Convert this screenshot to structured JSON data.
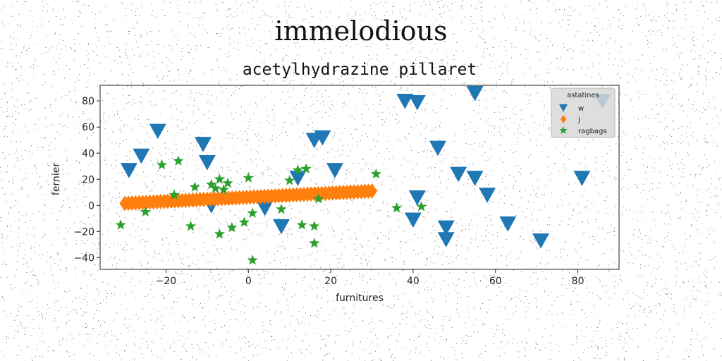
{
  "chart_data": {
    "type": "scatter",
    "suptitle": "immelodious",
    "title": "acetylhydrazine pillaret",
    "xlabel": "furnitures",
    "ylabel": "fernier",
    "xlim": [
      -36,
      90
    ],
    "ylim": [
      -49,
      92
    ],
    "xticks": [
      -20,
      0,
      20,
      40,
      60,
      80
    ],
    "yticks": [
      -40,
      -20,
      0,
      20,
      40,
      60,
      80
    ],
    "xtick_labels": [
      "−20",
      "0",
      "20",
      "40",
      "60",
      "80"
    ],
    "ytick_labels": [
      "−40",
      "−20",
      "0",
      "20",
      "40",
      "60",
      "80"
    ],
    "grid": false,
    "legend": {
      "title": "astatines",
      "placement": "top-right"
    },
    "series": [
      {
        "name": "w",
        "marker": "triangle-down",
        "color": "#1f77b4",
        "points": [
          [
            -29,
            27
          ],
          [
            -26,
            38
          ],
          [
            -22,
            57
          ],
          [
            -11,
            47
          ],
          [
            -10,
            33
          ],
          [
            -9,
            0
          ],
          [
            4,
            -2
          ],
          [
            8,
            -16
          ],
          [
            12,
            21
          ],
          [
            16,
            50
          ],
          [
            18,
            52
          ],
          [
            21,
            27
          ],
          [
            38,
            80
          ],
          [
            41,
            79
          ],
          [
            40,
            -11
          ],
          [
            41,
            6
          ],
          [
            46,
            44
          ],
          [
            48,
            -17
          ],
          [
            48,
            -26
          ],
          [
            51,
            24
          ],
          [
            55,
            21
          ],
          [
            55,
            86
          ],
          [
            58,
            8
          ],
          [
            63,
            -14
          ],
          [
            71,
            -27
          ],
          [
            81,
            21
          ],
          [
            86,
            80
          ]
        ]
      },
      {
        "name": "j",
        "marker": "diamond",
        "color": "#ff7f0e",
        "x_range": [
          -30,
          30
        ],
        "y_range": [
          1.5,
          11
        ],
        "count": 70
      },
      {
        "name": "ragbags",
        "marker": "star",
        "color": "#2ca02c",
        "points": [
          [
            -31,
            -15
          ],
          [
            -25,
            -5
          ],
          [
            -21,
            31
          ],
          [
            -18,
            8
          ],
          [
            -17,
            34
          ],
          [
            -14,
            -16
          ],
          [
            -13,
            14
          ],
          [
            -9,
            16
          ],
          [
            -8,
            13
          ],
          [
            -7,
            20
          ],
          [
            -6,
            12
          ],
          [
            -5,
            17
          ],
          [
            -7,
            -22
          ],
          [
            -4,
            -17
          ],
          [
            -1,
            -13
          ],
          [
            0,
            21
          ],
          [
            1,
            -6
          ],
          [
            1,
            -42
          ],
          [
            8,
            -3
          ],
          [
            10,
            19
          ],
          [
            12,
            27
          ],
          [
            13,
            -15
          ],
          [
            14,
            28
          ],
          [
            16,
            -16
          ],
          [
            17,
            5
          ],
          [
            16,
            -29
          ],
          [
            31,
            24
          ],
          [
            36,
            -2
          ],
          [
            42,
            -1
          ]
        ]
      }
    ]
  }
}
